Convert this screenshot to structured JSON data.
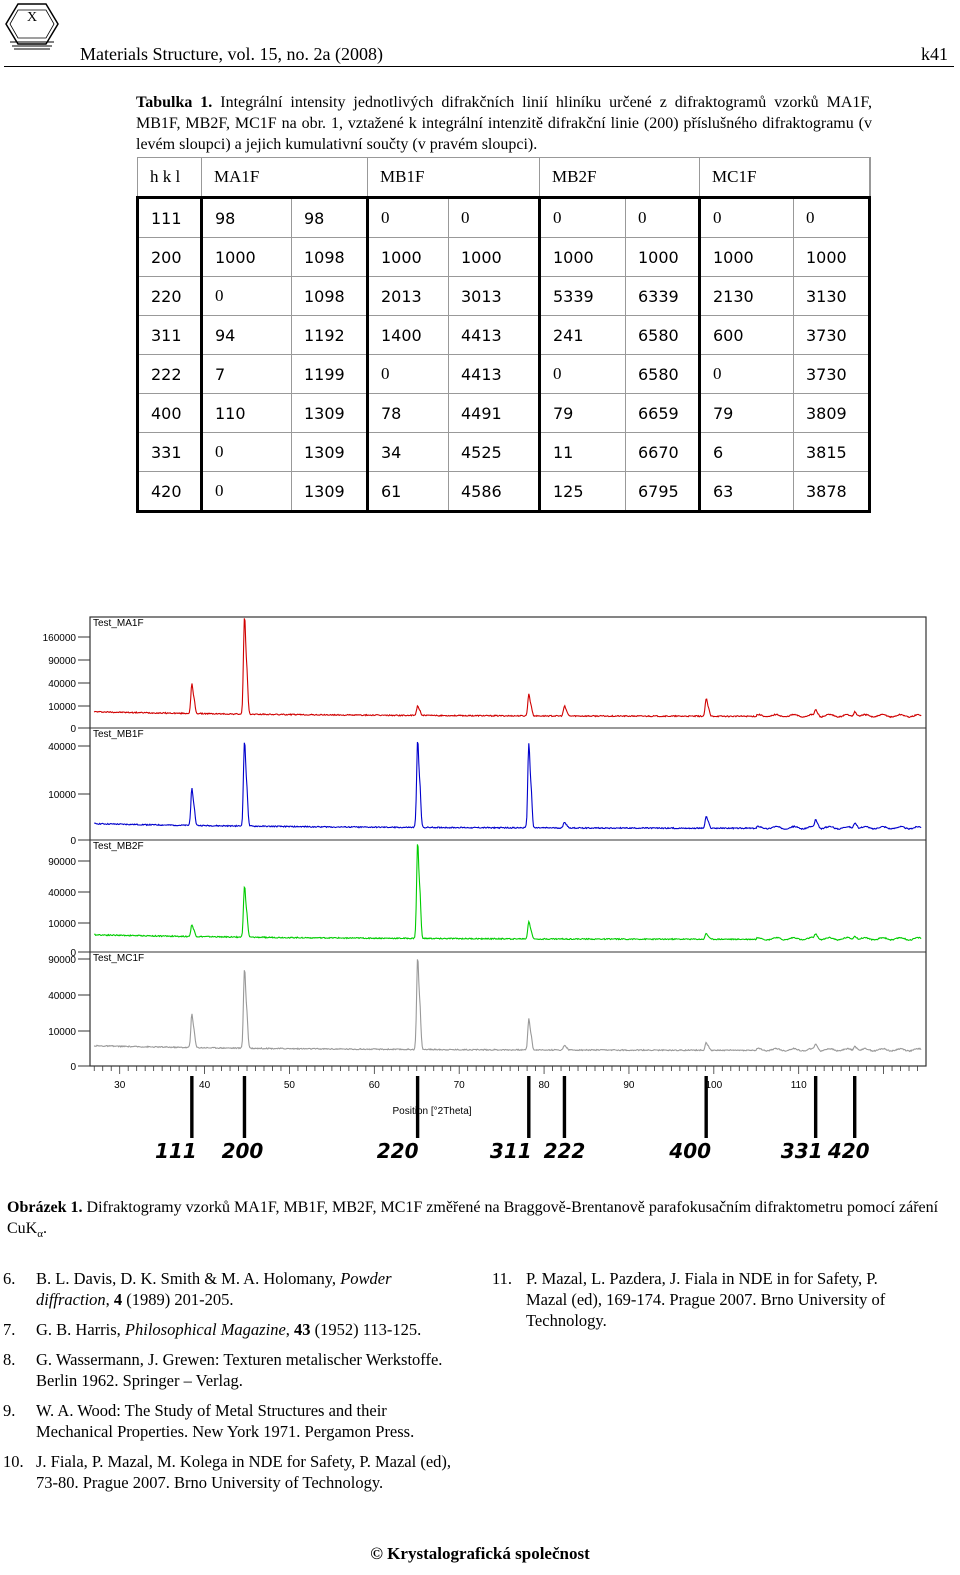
{
  "header": {
    "logo_label": "X",
    "journal": "Materials Structure, vol. 15, no. 2a (2008)",
    "page": "k41"
  },
  "table_caption": {
    "label": "Tabulka 1.",
    "text": " Integrální intensity jednotlivých difrakčních linií hliníku určené z difraktogramů vzorků MA1F, MB1F, MB2F, MC1F na obr. 1, vztažené k integrální intenzitě difrakční linie (200) příslušného difraktogramu (v levém sloupci) a jejich kumulativní součty (v pravém sloupci)."
  },
  "table": {
    "headers": [
      "h k l",
      "MA1F",
      "MB1F",
      "MB2F",
      "MC1F"
    ],
    "rows": [
      [
        "111",
        "98",
        "98",
        "0",
        "0",
        "0",
        "0",
        "0",
        "0"
      ],
      [
        "200",
        "1000",
        "1098",
        "1000",
        "1000",
        "1000",
        "1000",
        "1000",
        "1000"
      ],
      [
        "220",
        "0",
        "1098",
        "2013",
        "3013",
        "5339",
        "6339",
        "2130",
        "3130"
      ],
      [
        "311",
        "94",
        "1192",
        "1400",
        "4413",
        "241",
        "6580",
        "600",
        "3730"
      ],
      [
        "222",
        "7",
        "1199",
        "0",
        "4413",
        "0",
        "6580",
        "0",
        "3730"
      ],
      [
        "400",
        "110",
        "1309",
        "78",
        "4491",
        "79",
        "6659",
        "79",
        "3809"
      ],
      [
        "331",
        "0",
        "1309",
        "34",
        "4525",
        "11",
        "6670",
        "6",
        "3815"
      ],
      [
        "420",
        "0",
        "1309",
        "61",
        "4586",
        "125",
        "6795",
        "63",
        "3878"
      ]
    ]
  },
  "chart_data": {
    "type": "line",
    "xlabel": "Position [°2Theta]",
    "xlim": [
      26.5,
      125
    ],
    "x_ticks": [
      30,
      40,
      50,
      60,
      70,
      80,
      90,
      100,
      110
    ],
    "series": [
      {
        "name": "Test_MA1F",
        "color": "#d00000",
        "y_ticks": [
          "160000",
          "90000",
          "40000",
          "10000",
          "0"
        ],
        "peaks": [
          [
            38.5,
            0.3
          ],
          [
            44.7,
            1.0
          ],
          [
            65.1,
            0.1
          ],
          [
            78.2,
            0.22
          ],
          [
            82.4,
            0.1
          ],
          [
            99.1,
            0.18
          ],
          [
            112.0,
            0.06
          ],
          [
            116.6,
            0.05
          ]
        ]
      },
      {
        "name": "Test_MB1F",
        "color": "#0000cc",
        "y_ticks": [
          "40000",
          "10000",
          "0"
        ],
        "peaks": [
          [
            38.5,
            0.38
          ],
          [
            44.7,
            0.86
          ],
          [
            65.1,
            0.88
          ],
          [
            78.2,
            0.85
          ],
          [
            82.4,
            0.06
          ],
          [
            99.1,
            0.12
          ],
          [
            112.0,
            0.08
          ],
          [
            116.6,
            0.06
          ]
        ]
      },
      {
        "name": "Test_MB2F",
        "color": "#00cc00",
        "y_ticks": [
          "90000",
          "40000",
          "10000",
          "0"
        ],
        "peaks": [
          [
            38.5,
            0.12
          ],
          [
            44.7,
            0.52
          ],
          [
            65.1,
            0.98
          ],
          [
            78.2,
            0.18
          ],
          [
            99.1,
            0.06
          ],
          [
            112.0,
            0.05
          ],
          [
            116.6,
            0.04
          ]
        ]
      },
      {
        "name": "Test_MC1F",
        "color": "#999999",
        "y_ticks": [
          "90000",
          "40000",
          "10000",
          "0"
        ],
        "peaks": [
          [
            38.5,
            0.35
          ],
          [
            44.7,
            0.82
          ],
          [
            65.1,
            0.95
          ],
          [
            78.2,
            0.32
          ],
          [
            82.4,
            0.05
          ],
          [
            99.1,
            0.08
          ],
          [
            112.0,
            0.06
          ],
          [
            116.6,
            0.05
          ]
        ]
      }
    ],
    "markers": [
      {
        "label": "111",
        "x": 38.5
      },
      {
        "label": "200",
        "x": 44.7
      },
      {
        "label": "220",
        "x": 65.1
      },
      {
        "label": "311",
        "x": 78.2
      },
      {
        "label": "222",
        "x": 82.4
      },
      {
        "label": "400",
        "x": 99.1
      },
      {
        "label": "331",
        "x": 112.0
      },
      {
        "label": "420",
        "x": 116.6
      }
    ]
  },
  "figure_caption": {
    "label": "Obrázek 1.",
    "text": " Difraktogramy vzorků MA1F, MB1F, MB2F, MC1F změřené na Braggově-Brentanově parafokusačním difraktometru pomocí záření CuK",
    "subscript": "α",
    "tail": "."
  },
  "references_left": [
    {
      "num": "6.",
      "pre": "B. L. Davis, D. K. Smith & M. A. Holomany, ",
      "ital": "Powder diffraction",
      "bold": "4",
      "post": " (1989) 201-205."
    },
    {
      "num": "7.",
      "pre": "G. B. Harris, ",
      "ital": "Philosophical Magazine",
      "bold": "43",
      "post": " (1952) 113-125."
    },
    {
      "num": "8.",
      "pre": "G. Wassermann, J. Grewen:  Texturen metalischer Werkstoffe. Berlin 1962. Springer – Verlag.",
      "ital": "",
      "bold": "",
      "post": ""
    },
    {
      "num": "9.",
      "pre": "W. A. Wood: The Study of Metal Structures and their Mechanical Properties. New York 1971. Pergamon Press.",
      "ital": "",
      "bold": "",
      "post": ""
    },
    {
      "num": "10.",
      "pre": "J. Fiala, P. Mazal, M. Kolega in NDE for Safety, P. Mazal (ed), 73-80. Prague 2007. Brno University of Technology.",
      "ital": "",
      "bold": "",
      "post": ""
    }
  ],
  "references_right": [
    {
      "num": "11.",
      "pre": "P. Mazal, L. Pazdera, J. Fiala in NDE in for Safety, P. Mazal (ed), 169-174. Prague 2007. Brno University of Technology.",
      "ital": "",
      "bold": "",
      "post": ""
    }
  ],
  "footer": "© Krystalografická společnost"
}
